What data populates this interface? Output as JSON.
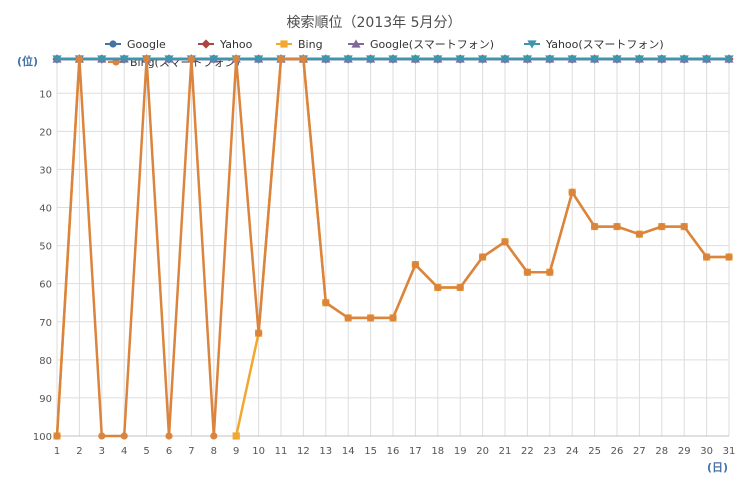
{
  "chart_data": {
    "type": "line",
    "title": "検索順位（2013年 5月分）",
    "y_unit_label": "(位)",
    "x_unit_label": "(日)",
    "ylim": [
      100,
      1
    ],
    "y_reversed": true,
    "y_ticks": [
      "10",
      "20",
      "30",
      "40",
      "50",
      "60",
      "70",
      "80",
      "90",
      "100"
    ],
    "y_tick_values": [
      10,
      20,
      30,
      40,
      50,
      60,
      70,
      80,
      90,
      100
    ],
    "x_ticks": [
      "1",
      "2",
      "3",
      "4",
      "5",
      "6",
      "7",
      "8",
      "9",
      "10",
      "11",
      "12",
      "13",
      "14",
      "15",
      "16",
      "17",
      "18",
      "19",
      "20",
      "21",
      "22",
      "23",
      "24",
      "25",
      "26",
      "27",
      "28",
      "29",
      "30",
      "31"
    ],
    "x": [
      1,
      2,
      3,
      4,
      5,
      6,
      7,
      8,
      9,
      10,
      11,
      12,
      13,
      14,
      15,
      16,
      17,
      18,
      19,
      20,
      21,
      22,
      23,
      24,
      25,
      26,
      27,
      28,
      29,
      30,
      31
    ],
    "grid": true,
    "legend_position": "top",
    "series": [
      {
        "name": "Google",
        "color": "#4572a7",
        "marker": "circle",
        "values": [
          1,
          1,
          1,
          1,
          1,
          1,
          1,
          1,
          1,
          1,
          1,
          1,
          1,
          1,
          1,
          1,
          1,
          1,
          1,
          1,
          1,
          1,
          1,
          1,
          1,
          1,
          1,
          1,
          1,
          1,
          1
        ]
      },
      {
        "name": "Yahoo",
        "color": "#aa4643",
        "marker": "diamond",
        "values": [
          1,
          1,
          1,
          1,
          1,
          1,
          1,
          1,
          1,
          1,
          1,
          1,
          1,
          1,
          1,
          1,
          1,
          1,
          1,
          1,
          1,
          1,
          1,
          1,
          1,
          1,
          1,
          1,
          1,
          1,
          1
        ]
      },
      {
        "name": "Bing",
        "color": "#f0a830",
        "marker": "square",
        "values": [
          100,
          1,
          null,
          null,
          1,
          null,
          null,
          null,
          100,
          73,
          1,
          1,
          65,
          69,
          69,
          69,
          55,
          61,
          61,
          53,
          49,
          57,
          57,
          36,
          45,
          45,
          47,
          45,
          45,
          53,
          53
        ]
      },
      {
        "name": "Google(スマートフォン)",
        "color": "#80699b",
        "marker": "triangle",
        "values": [
          1,
          1,
          1,
          1,
          1,
          1,
          1,
          1,
          1,
          1,
          1,
          1,
          1,
          1,
          1,
          1,
          1,
          1,
          1,
          1,
          1,
          1,
          1,
          1,
          1,
          1,
          1,
          1,
          1,
          1,
          1
        ]
      },
      {
        "name": "Yahoo(スマートフォン)",
        "color": "#3d96ae",
        "marker": "triangle-down",
        "values": [
          1,
          1,
          1,
          1,
          1,
          1,
          1,
          1,
          1,
          1,
          1,
          1,
          1,
          1,
          1,
          1,
          1,
          1,
          1,
          1,
          1,
          1,
          1,
          1,
          1,
          1,
          1,
          1,
          1,
          1,
          1
        ]
      },
      {
        "name": "Bing(スマートフォン)",
        "color": "#db843d",
        "marker": "circle",
        "values": [
          100,
          1,
          100,
          100,
          1,
          100,
          1,
          100,
          1,
          73,
          1,
          1,
          65,
          69,
          69,
          69,
          55,
          61,
          61,
          53,
          49,
          57,
          57,
          36,
          45,
          45,
          47,
          45,
          45,
          53,
          53
        ]
      }
    ]
  }
}
